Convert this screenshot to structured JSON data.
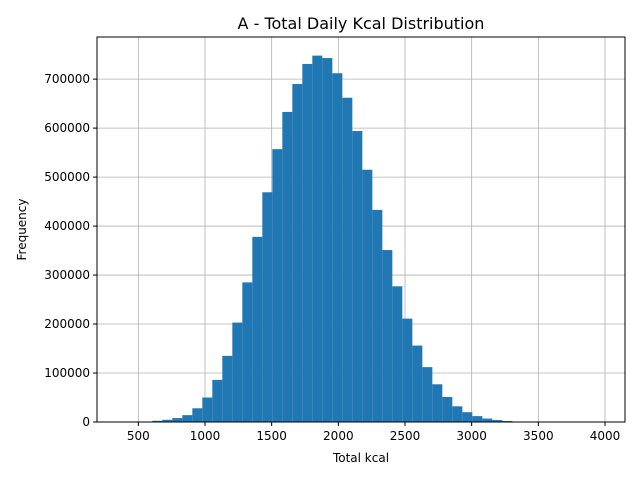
{
  "chart_data": {
    "type": "bar",
    "title": "A - Total Daily Kcal Distribution",
    "xlabel": "Total kcal",
    "ylabel": "Frequency",
    "xlim": [
      190,
      4150
    ],
    "ylim": [
      0,
      786000
    ],
    "grid": true,
    "xticks": [
      500,
      1000,
      1500,
      2000,
      2500,
      3000,
      3500,
      4000
    ],
    "yticks": [
      0,
      100000,
      200000,
      300000,
      400000,
      500000,
      600000,
      700000
    ],
    "bar_color": "#1f77b4",
    "bin_width": 75,
    "bins_start": 380,
    "values": [
      200,
      500,
      1000,
      2500,
      4500,
      8000,
      14000,
      28000,
      50000,
      86000,
      135000,
      203000,
      285000,
      378000,
      469000,
      557000,
      633000,
      690000,
      731000,
      748000,
      743000,
      712000,
      662000,
      594000,
      515000,
      433000,
      351000,
      277000,
      211000,
      156000,
      112000,
      77000,
      51000,
      32000,
      20000,
      12000,
      7000,
      4000,
      2000,
      1000,
      500,
      300,
      150,
      80,
      40,
      20
    ]
  }
}
